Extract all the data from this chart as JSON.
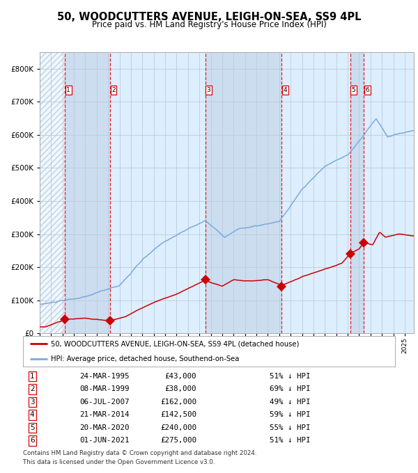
{
  "title": "50, WOODCUTTERS AVENUE, LEIGH-ON-SEA, SS9 4PL",
  "subtitle": "Price paid vs. HM Land Registry's House Price Index (HPI)",
  "legend_line1": "50, WOODCUTTERS AVENUE, LEIGH-ON-SEA, SS9 4PL (detached house)",
  "legend_line2": "HPI: Average price, detached house, Southend-on-Sea",
  "footnote1": "Contains HM Land Registry data © Crown copyright and database right 2024.",
  "footnote2": "This data is licensed under the Open Government Licence v3.0.",
  "sales": [
    {
      "num": 1,
      "date_label": "24-MAR-1995",
      "price_label": "£43,000",
      "pct_label": "51% ↓ HPI",
      "year": 1995.22,
      "price": 43000
    },
    {
      "num": 2,
      "date_label": "08-MAR-1999",
      "price_label": "£38,000",
      "pct_label": "69% ↓ HPI",
      "year": 1999.18,
      "price": 38000
    },
    {
      "num": 3,
      "date_label": "06-JUL-2007",
      "price_label": "£162,000",
      "pct_label": "49% ↓ HPI",
      "year": 2007.51,
      "price": 162000
    },
    {
      "num": 4,
      "date_label": "21-MAR-2014",
      "price_label": "£142,500",
      "pct_label": "59% ↓ HPI",
      "year": 2014.22,
      "price": 142500
    },
    {
      "num": 5,
      "date_label": "20-MAR-2020",
      "price_label": "£240,000",
      "pct_label": "55% ↓ HPI",
      "year": 2020.22,
      "price": 240000
    },
    {
      "num": 6,
      "date_label": "01-JUN-2021",
      "price_label": "£275,000",
      "pct_label": "51% ↓ HPI",
      "year": 2021.42,
      "price": 275000
    }
  ],
  "hpi_color": "#7aaadd",
  "price_color": "#cc0000",
  "sale_marker_color": "#cc0000",
  "vline_color": "#dd0000",
  "bg_color": "#ddeeff",
  "grid_color": "#bbccdd",
  "ylim": [
    0,
    850000
  ],
  "xlim_start": 1993.0,
  "xlim_end": 2025.8
}
